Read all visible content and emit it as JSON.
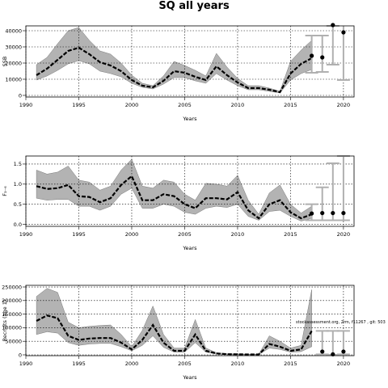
{
  "title": "SQ all years",
  "watermark": "stockassessment.org, 2rm, f11267 , git: 503",
  "chart_data": [
    {
      "type": "line",
      "ylabel": "SSB",
      "xlabel": "Years",
      "xlim": [
        1990,
        2021
      ],
      "ylim": [
        -1000,
        43000
      ],
      "xticks": [
        1990,
        1995,
        2000,
        2005,
        2010,
        2015,
        2020
      ],
      "yticks": [
        0,
        10000,
        20000,
        30000,
        40000
      ],
      "ytick_labels": [
        "0",
        "10000",
        "20000",
        "30000",
        "40000"
      ],
      "grid": true,
      "x": [
        1991,
        1992,
        1993,
        1994,
        1995,
        1996,
        1997,
        1998,
        1999,
        2000,
        2001,
        2002,
        2003,
        2004,
        2005,
        2006,
        2007,
        2008,
        2009,
        2010,
        2011,
        2012,
        2013,
        2014,
        2015,
        2016,
        2017
      ],
      "series": [
        {
          "values": [
            12500,
            16500,
            22000,
            27500,
            29500,
            25500,
            20500,
            18500,
            15000,
            9500,
            6000,
            5000,
            9000,
            15000,
            14000,
            11500,
            9500,
            18000,
            12500,
            8000,
            4500,
            4500,
            3500,
            2000,
            13500,
            19500,
            23000
          ]
        },
        {
          "values": [
            9500,
            12000,
            15500,
            19500,
            21500,
            19500,
            15000,
            13500,
            11500,
            7500,
            5000,
            4000,
            7000,
            11000,
            11000,
            9000,
            7500,
            13500,
            9500,
            6000,
            3500,
            3500,
            2500,
            1500,
            9500,
            13500,
            16000
          ]
        },
        {
          "values": [
            19000,
            23500,
            32000,
            40000,
            42000,
            34000,
            27500,
            25500,
            20000,
            12500,
            7500,
            6000,
            12000,
            21000,
            18500,
            15500,
            12000,
            26000,
            17500,
            10500,
            6000,
            6000,
            4500,
            2500,
            21000,
            28000,
            34000
          ]
        }
      ],
      "forecast": {
        "x": [
          2017,
          2018,
          2019,
          2020
        ],
        "median": [
          24500,
          23500,
          43500,
          39000
        ],
        "low": [
          14000,
          14500,
          19000,
          9500
        ],
        "high": [
          37000,
          37000,
          43000,
          44000
        ]
      }
    },
    {
      "type": "line",
      "ylabel": "F₃₋₆",
      "xlabel": "Years",
      "xlim": [
        1990,
        2021
      ],
      "ylim": [
        -0.05,
        1.7
      ],
      "xticks": [
        1990,
        1995,
        2000,
        2005,
        2010,
        2015,
        2020
      ],
      "yticks": [
        0,
        0.5,
        1,
        1.5
      ],
      "ytick_labels": [
        "0.0",
        "0.5",
        "1.0",
        "1.5"
      ],
      "grid": true,
      "x": [
        1991,
        1992,
        1993,
        1994,
        1995,
        1996,
        1997,
        1998,
        1999,
        2000,
        2001,
        2002,
        2003,
        2004,
        2005,
        2006,
        2007,
        2008,
        2009,
        2010,
        2011,
        2012,
        2013,
        2014,
        2015,
        2016,
        2017
      ],
      "series": [
        {
          "values": [
            0.95,
            0.88,
            0.9,
            0.98,
            0.7,
            0.68,
            0.55,
            0.65,
            0.98,
            1.2,
            0.6,
            0.6,
            0.75,
            0.7,
            0.5,
            0.4,
            0.65,
            0.65,
            0.62,
            0.8,
            0.35,
            0.15,
            0.5,
            0.6,
            0.3,
            0.15,
            0.25
          ]
        },
        {
          "values": [
            0.65,
            0.6,
            0.62,
            0.62,
            0.45,
            0.45,
            0.35,
            0.45,
            0.75,
            0.9,
            0.4,
            0.4,
            0.5,
            0.45,
            0.3,
            0.25,
            0.4,
            0.45,
            0.42,
            0.5,
            0.2,
            0.1,
            0.32,
            0.35,
            0.2,
            0.08,
            0.15
          ]
        },
        {
          "values": [
            1.35,
            1.25,
            1.3,
            1.45,
            1.1,
            1.05,
            0.85,
            0.95,
            1.35,
            1.62,
            0.95,
            0.9,
            1.1,
            1.05,
            0.75,
            0.6,
            1.02,
            1.0,
            0.95,
            1.22,
            0.6,
            0.25,
            0.78,
            0.98,
            0.5,
            0.28,
            0.45
          ]
        }
      ],
      "forecast": {
        "x": [
          2017,
          2018,
          2019,
          2020
        ],
        "median": [
          0.27,
          0.28,
          0.28,
          0.28
        ],
        "low": [
          0.1,
          0.1,
          0.1,
          0.1
        ],
        "high": [
          0.5,
          0.92,
          1.52,
          1.7
        ]
      }
    },
    {
      "type": "line",
      "ylabel": "Recruits (age 1)",
      "xlabel": "Years",
      "xlim": [
        1990,
        2021
      ],
      "ylim": [
        -3000,
        256000
      ],
      "xticks": [
        1990,
        1995,
        2000,
        2005,
        2010,
        2015,
        2020
      ],
      "yticks": [
        0,
        50000,
        100000,
        150000,
        200000,
        250000
      ],
      "ytick_labels": [
        "0",
        "50000",
        "100000",
        "150000",
        "200000",
        "250000"
      ],
      "grid": true,
      "x": [
        1991,
        1992,
        1993,
        1994,
        1995,
        1996,
        1997,
        1998,
        1999,
        2000,
        2001,
        2002,
        2003,
        2004,
        2005,
        2006,
        2007,
        2008,
        2009,
        2010,
        2011,
        2012,
        2013,
        2014,
        2015,
        2016,
        2017
      ],
      "series": [
        {
          "values": [
            125000,
            145000,
            135000,
            70000,
            55000,
            60000,
            62000,
            62000,
            45000,
            20000,
            55000,
            110000,
            45000,
            15000,
            15000,
            75000,
            15000,
            5000,
            2500,
            2000,
            1500,
            1500,
            40000,
            30000,
            15000,
            20000,
            88000
          ]
        },
        {
          "values": [
            75000,
            85000,
            80000,
            45000,
            35000,
            40000,
            42000,
            42000,
            30000,
            15000,
            35000,
            70000,
            28000,
            10000,
            10000,
            45000,
            10000,
            3000,
            1500,
            1200,
            1000,
            1000,
            25000,
            20000,
            10000,
            12000,
            30000
          ]
        },
        {
          "values": [
            215000,
            245000,
            230000,
            120000,
            100000,
            105000,
            108000,
            110000,
            75000,
            30000,
            90000,
            180000,
            75000,
            25000,
            25000,
            130000,
            25000,
            8000,
            4000,
            3000,
            2500,
            2500,
            70000,
            50000,
            25000,
            35000,
            240000
          ]
        }
      ],
      "forecast": {
        "x": [
          2018,
          2019,
          2020
        ],
        "median": [
          12000,
          2000,
          12000
        ],
        "low": [
          2000,
          0,
          2000
        ],
        "high": [
          88000,
          88000,
          88000
        ]
      }
    }
  ]
}
